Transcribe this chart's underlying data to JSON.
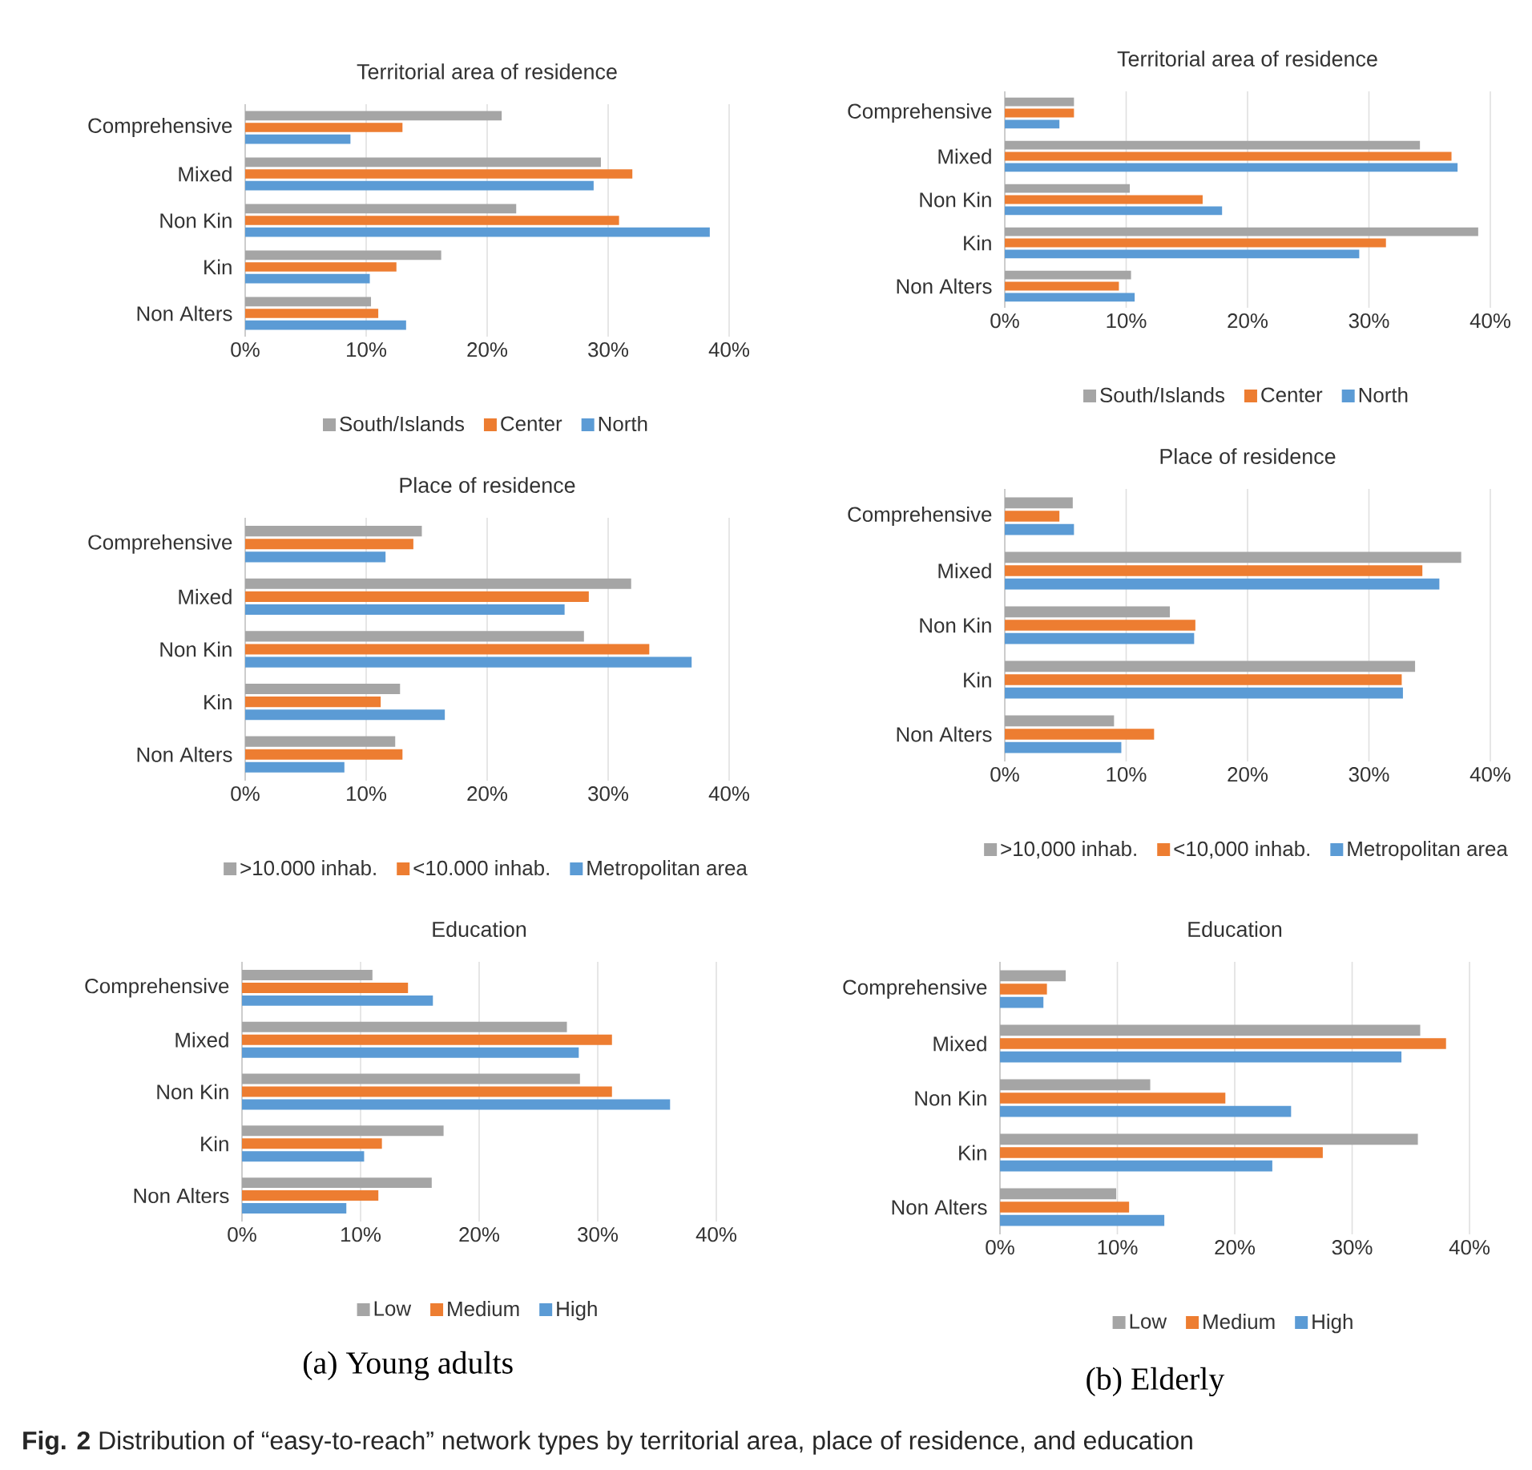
{
  "chart_data": [
    {
      "type": "bar",
      "orientation": "horizontal",
      "title": "Territorial area of residence",
      "categories": [
        "Comprehensive",
        "Mixed",
        "Non Kin",
        "Kin",
        "Non Alters"
      ],
      "series": [
        {
          "name": "South/Islands",
          "color": "#a5a5a5",
          "values": [
            21.2,
            29.4,
            22.4,
            16.2,
            10.4
          ]
        },
        {
          "name": "Center",
          "color": "#ed7d31",
          "values": [
            13.0,
            32.0,
            30.9,
            12.5,
            11.0
          ]
        },
        {
          "name": "North",
          "color": "#5b9bd5",
          "values": [
            8.7,
            28.8,
            38.4,
            10.3,
            13.3
          ]
        }
      ],
      "xlim": [
        0,
        40
      ],
      "xticks": [
        {
          "value": 0,
          "label": "0%"
        },
        {
          "value": 10,
          "label": "10%"
        },
        {
          "value": 20,
          "label": "20%"
        },
        {
          "value": 30,
          "label": "30%"
        },
        {
          "value": 40,
          "label": "40%"
        }
      ],
      "grid": "x",
      "legend": "bottom"
    },
    {
      "type": "bar",
      "orientation": "horizontal",
      "title": "Territorial area of residence",
      "categories": [
        "Comprehensive",
        "Mixed",
        "Non Kin",
        "Kin",
        "Non Alters"
      ],
      "series": [
        {
          "name": "South/Islands",
          "color": "#a5a5a5",
          "values": [
            5.7,
            34.2,
            10.3,
            39.0,
            10.4
          ]
        },
        {
          "name": "Center",
          "color": "#ed7d31",
          "values": [
            5.7,
            36.8,
            16.3,
            31.4,
            9.4
          ]
        },
        {
          "name": "North",
          "color": "#5b9bd5",
          "values": [
            4.5,
            37.3,
            17.9,
            29.2,
            10.7
          ]
        }
      ],
      "xlim": [
        0,
        40
      ],
      "xticks": [
        {
          "value": 0,
          "label": "0%"
        },
        {
          "value": 10,
          "label": "10%"
        },
        {
          "value": 20,
          "label": "20%"
        },
        {
          "value": 30,
          "label": "30%"
        },
        {
          "value": 40,
          "label": "40%"
        }
      ],
      "grid": "x",
      "legend": "bottom"
    },
    {
      "type": "bar",
      "orientation": "horizontal",
      "title": "Place of residence",
      "categories": [
        "Comprehensive",
        "Mixed",
        "Non Kin",
        "Kin",
        "Non Alters"
      ],
      "series": [
        {
          "name": ">10.000 inhab.",
          "color": "#a5a5a5",
          "values": [
            14.6,
            31.9,
            28.0,
            12.8,
            12.4
          ]
        },
        {
          "name": "<10.000 inhab.",
          "color": "#ed7d31",
          "values": [
            13.9,
            28.4,
            33.4,
            11.2,
            13.0
          ]
        },
        {
          "name": "Metropolitan area",
          "color": "#5b9bd5",
          "values": [
            11.6,
            26.4,
            36.9,
            16.5,
            8.2
          ]
        }
      ],
      "xlim": [
        0,
        40
      ],
      "xticks": [
        {
          "value": 0,
          "label": "0%"
        },
        {
          "value": 10,
          "label": "10%"
        },
        {
          "value": 20,
          "label": "20%"
        },
        {
          "value": 30,
          "label": "30%"
        },
        {
          "value": 40,
          "label": "40%"
        }
      ],
      "grid": "x",
      "legend": "bottom"
    },
    {
      "type": "bar",
      "orientation": "horizontal",
      "title": "Place of residence",
      "categories": [
        "Comprehensive",
        "Mixed",
        "Non Kin",
        "Kin",
        "Non Alters"
      ],
      "series": [
        {
          "name": ">10,000 inhab.",
          "color": "#a5a5a5",
          "values": [
            5.6,
            37.6,
            13.6,
            33.8,
            9.0
          ]
        },
        {
          "name": "<10,000 inhab.",
          "color": "#ed7d31",
          "values": [
            4.5,
            34.4,
            15.7,
            32.7,
            12.3
          ]
        },
        {
          "name": "Metropolitan area",
          "color": "#5b9bd5",
          "values": [
            5.7,
            35.8,
            15.6,
            32.8,
            9.6
          ]
        }
      ],
      "xlim": [
        0,
        40
      ],
      "xticks": [
        {
          "value": 0,
          "label": "0%"
        },
        {
          "value": 10,
          "label": "10%"
        },
        {
          "value": 20,
          "label": "20%"
        },
        {
          "value": 30,
          "label": "30%"
        },
        {
          "value": 40,
          "label": "40%"
        }
      ],
      "grid": "x",
      "legend": "bottom"
    },
    {
      "type": "bar",
      "orientation": "horizontal",
      "title": "Education",
      "categories": [
        "Comprehensive",
        "Mixed",
        "Non Kin",
        "Kin",
        "Non Alters"
      ],
      "series": [
        {
          "name": "Low",
          "color": "#a5a5a5",
          "values": [
            11.0,
            27.4,
            28.5,
            17.0,
            16.0
          ]
        },
        {
          "name": "Medium",
          "color": "#ed7d31",
          "values": [
            14.0,
            31.2,
            31.2,
            11.8,
            11.5
          ]
        },
        {
          "name": "High",
          "color": "#5b9bd5",
          "values": [
            16.1,
            28.4,
            36.1,
            10.3,
            8.8
          ]
        }
      ],
      "xlim": [
        0,
        40
      ],
      "xticks": [
        {
          "value": 0,
          "label": "0%"
        },
        {
          "value": 10,
          "label": "10%"
        },
        {
          "value": 20,
          "label": "20%"
        },
        {
          "value": 30,
          "label": "30%"
        },
        {
          "value": 40,
          "label": "40%"
        }
      ],
      "grid": "x",
      "legend": "bottom",
      "annotations": [
        "(a) Young adults"
      ]
    },
    {
      "type": "bar",
      "orientation": "horizontal",
      "title": "Education",
      "categories": [
        "Comprehensive",
        "Mixed",
        "Non Kin",
        "Kin",
        "Non Alters"
      ],
      "series": [
        {
          "name": "Low",
          "color": "#a5a5a5",
          "values": [
            5.6,
            35.8,
            12.8,
            35.6,
            9.9
          ]
        },
        {
          "name": "Medium",
          "color": "#ed7d31",
          "values": [
            4.0,
            38.0,
            19.2,
            27.5,
            11.0
          ]
        },
        {
          "name": "High",
          "color": "#5b9bd5",
          "values": [
            3.7,
            34.2,
            24.8,
            23.2,
            14.0
          ]
        }
      ],
      "xlim": [
        0,
        40
      ],
      "xticks": [
        {
          "value": 0,
          "label": "0%"
        },
        {
          "value": 10,
          "label": "10%"
        },
        {
          "value": 20,
          "label": "20%"
        },
        {
          "value": 30,
          "label": "30%"
        },
        {
          "value": 40,
          "label": "40%"
        }
      ],
      "grid": "x",
      "legend": "bottom",
      "annotations": [
        "(b) Elderly",
        "**Fig. 2** Distribution of “easy-to-reach” network types by territorial area, place of residence, and education"
      ]
    }
  ]
}
